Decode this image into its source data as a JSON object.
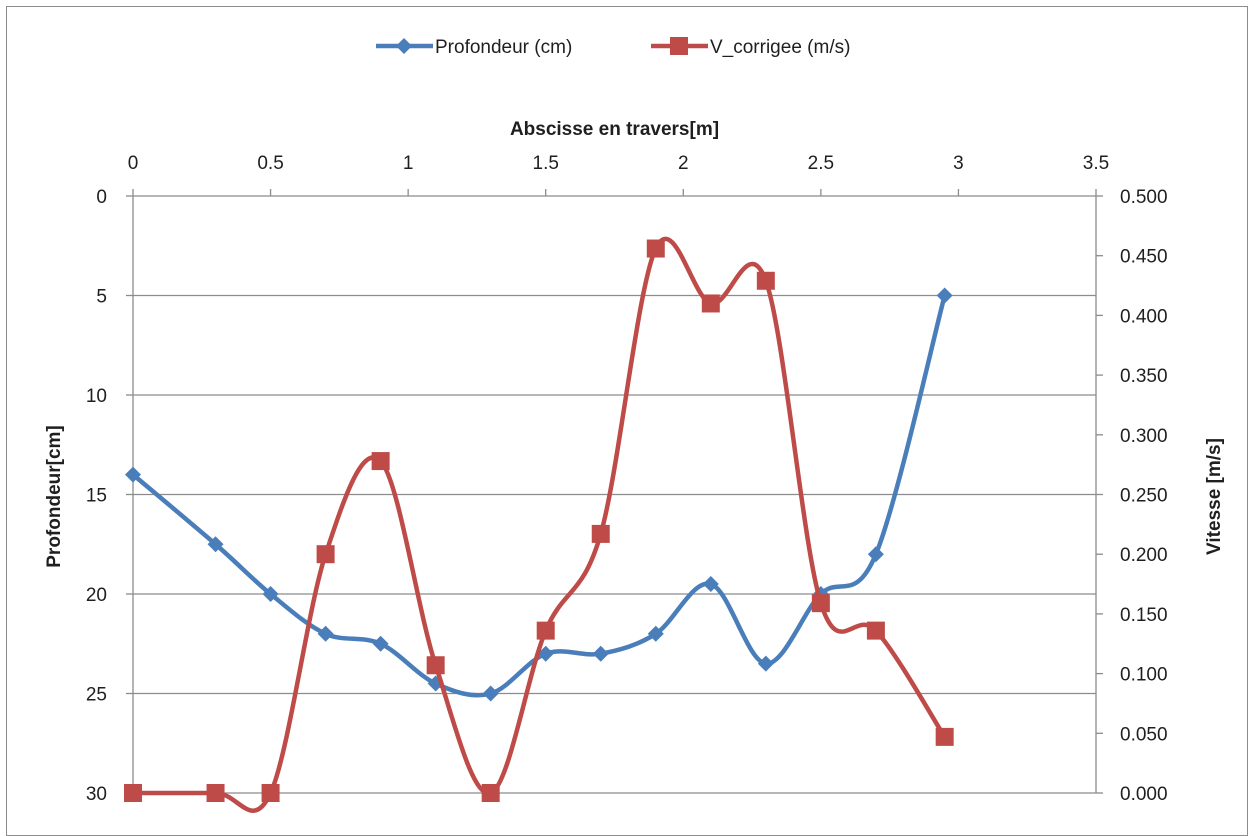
{
  "chart_data": {
    "type": "line",
    "title": "",
    "xlabel": "Abscisse en travers[m]",
    "ylabel_left": "Profondeur[cm]",
    "ylabel_right": "Vitesse [m/s]",
    "xlim": [
      0,
      3.5
    ],
    "ylim_left": [
      0,
      30
    ],
    "ylim_left_reversed": true,
    "ylim_right": [
      0,
      0.5
    ],
    "x_ticks": [
      "0",
      "0.5",
      "1",
      "1.5",
      "2",
      "2.5",
      "3",
      "3.5"
    ],
    "y_left_ticks": [
      "0",
      "5",
      "10",
      "15",
      "20",
      "25",
      "30"
    ],
    "y_right_ticks": [
      "0.500",
      "0.450",
      "0.400",
      "0.350",
      "0.300",
      "0.250",
      "0.200",
      "0.150",
      "0.100",
      "0.050",
      "0.000"
    ],
    "grid": "horizontal",
    "legend_position": "top",
    "series": [
      {
        "name": "Profondeur (cm)",
        "axis": "left",
        "color": "#4a7ebb",
        "marker": "diamond",
        "smooth": true,
        "x": [
          0,
          0.3,
          0.5,
          0.7,
          0.9,
          1.1,
          1.3,
          1.5,
          1.7,
          1.9,
          2.1,
          2.3,
          2.5,
          2.7,
          2.95
        ],
        "values": [
          14,
          17.5,
          20,
          22,
          22.5,
          24.5,
          25,
          23,
          23,
          22,
          19.5,
          23.5,
          20,
          18,
          5
        ]
      },
      {
        "name": "V_corrigee (m/s)",
        "axis": "right",
        "color": "#be4b48",
        "marker": "square",
        "smooth": true,
        "x": [
          0,
          0.3,
          0.5,
          0.7,
          0.9,
          1.1,
          1.3,
          1.5,
          1.7,
          1.9,
          2.1,
          2.3,
          2.5,
          2.7,
          2.95
        ],
        "values": [
          0,
          0,
          0,
          0.2,
          0.278,
          0.107,
          0,
          0.136,
          0.217,
          0.456,
          0.41,
          0.429,
          0.159,
          0.136,
          0.047
        ]
      }
    ]
  }
}
